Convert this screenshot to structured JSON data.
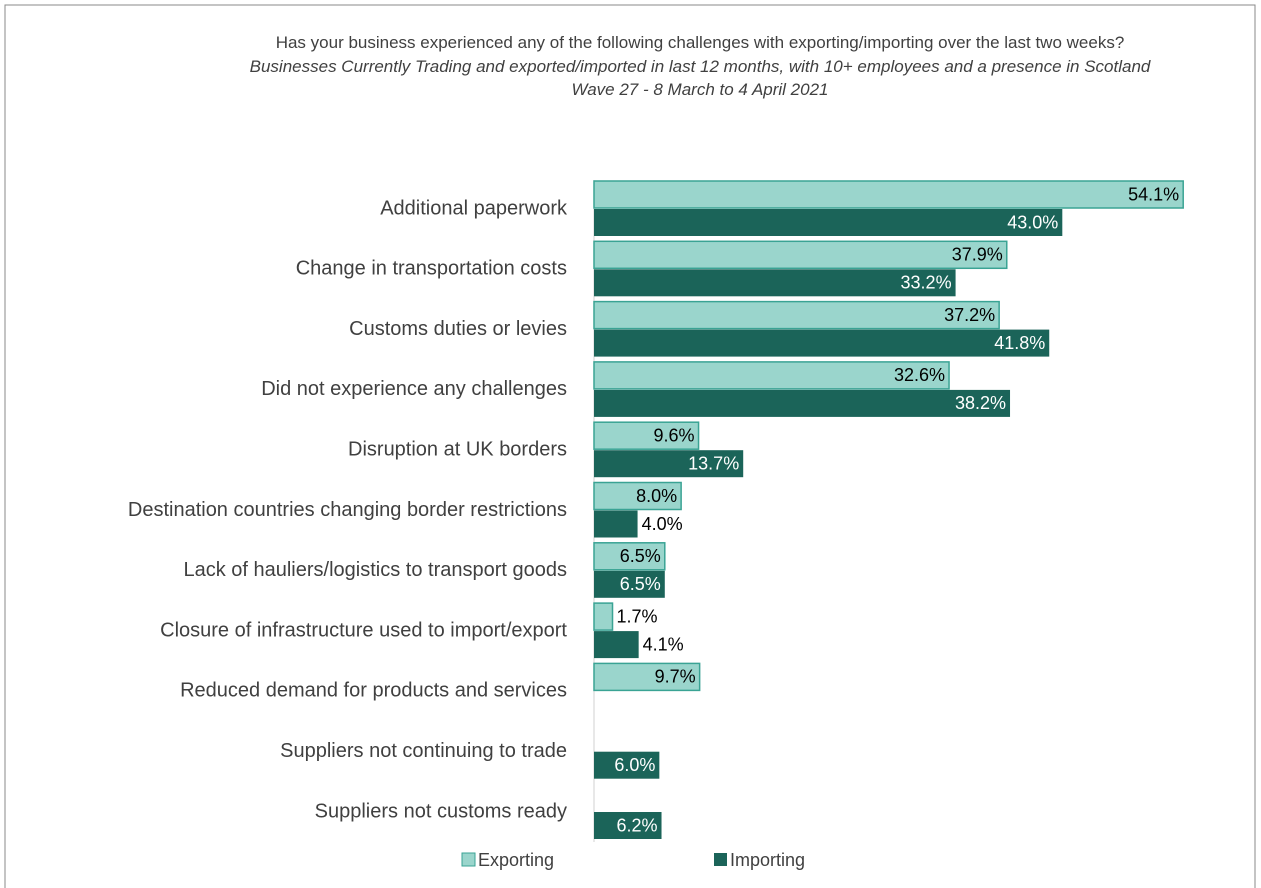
{
  "chart_data": {
    "type": "hbar",
    "title": "Has your business experienced any of the following challenges with exporting/importing over the last two weeks?",
    "subtitle": "Businesses Currently Trading and exported/imported in last 12 months, with 10+ employees and a presence in Scotland",
    "annotation": "Wave 27 - 8 March to 4 April 2021",
    "categories": [
      "Additional paperwork",
      "Change in transportation costs",
      "Customs duties or levies",
      "Did not experience any challenges",
      "Disruption at UK borders",
      "Destination countries changing border restrictions",
      "Lack of hauliers/logistics to transport goods",
      "Closure of infrastructure used to import/export",
      "Reduced demand for products and services",
      "Suppliers not continuing to trade",
      "Suppliers not customs ready"
    ],
    "series": [
      {
        "name": "Exporting",
        "color": "#9ad5cc",
        "values": [
          54.1,
          37.9,
          37.2,
          32.6,
          9.6,
          8.0,
          6.5,
          1.7,
          9.7,
          null,
          null
        ],
        "value_labels": [
          "54.1%",
          "37.9%",
          "37.2%",
          "32.6%",
          "9.6%",
          "8.0%",
          "6.5%",
          "1.7%",
          "9.7%",
          null,
          null
        ]
      },
      {
        "name": "Importing",
        "color": "#1b6459",
        "values": [
          43.0,
          33.2,
          41.8,
          38.2,
          13.7,
          4.0,
          6.5,
          4.1,
          null,
          6.0,
          6.2
        ],
        "value_labels": [
          "43.0%",
          "33.2%",
          "41.8%",
          "38.2%",
          "13.7%",
          "4.0%",
          "6.5%",
          "4.1%",
          null,
          "6.0%",
          "6.2%"
        ]
      }
    ],
    "xlim": [
      0,
      55
    ],
    "legend": "bottom"
  }
}
